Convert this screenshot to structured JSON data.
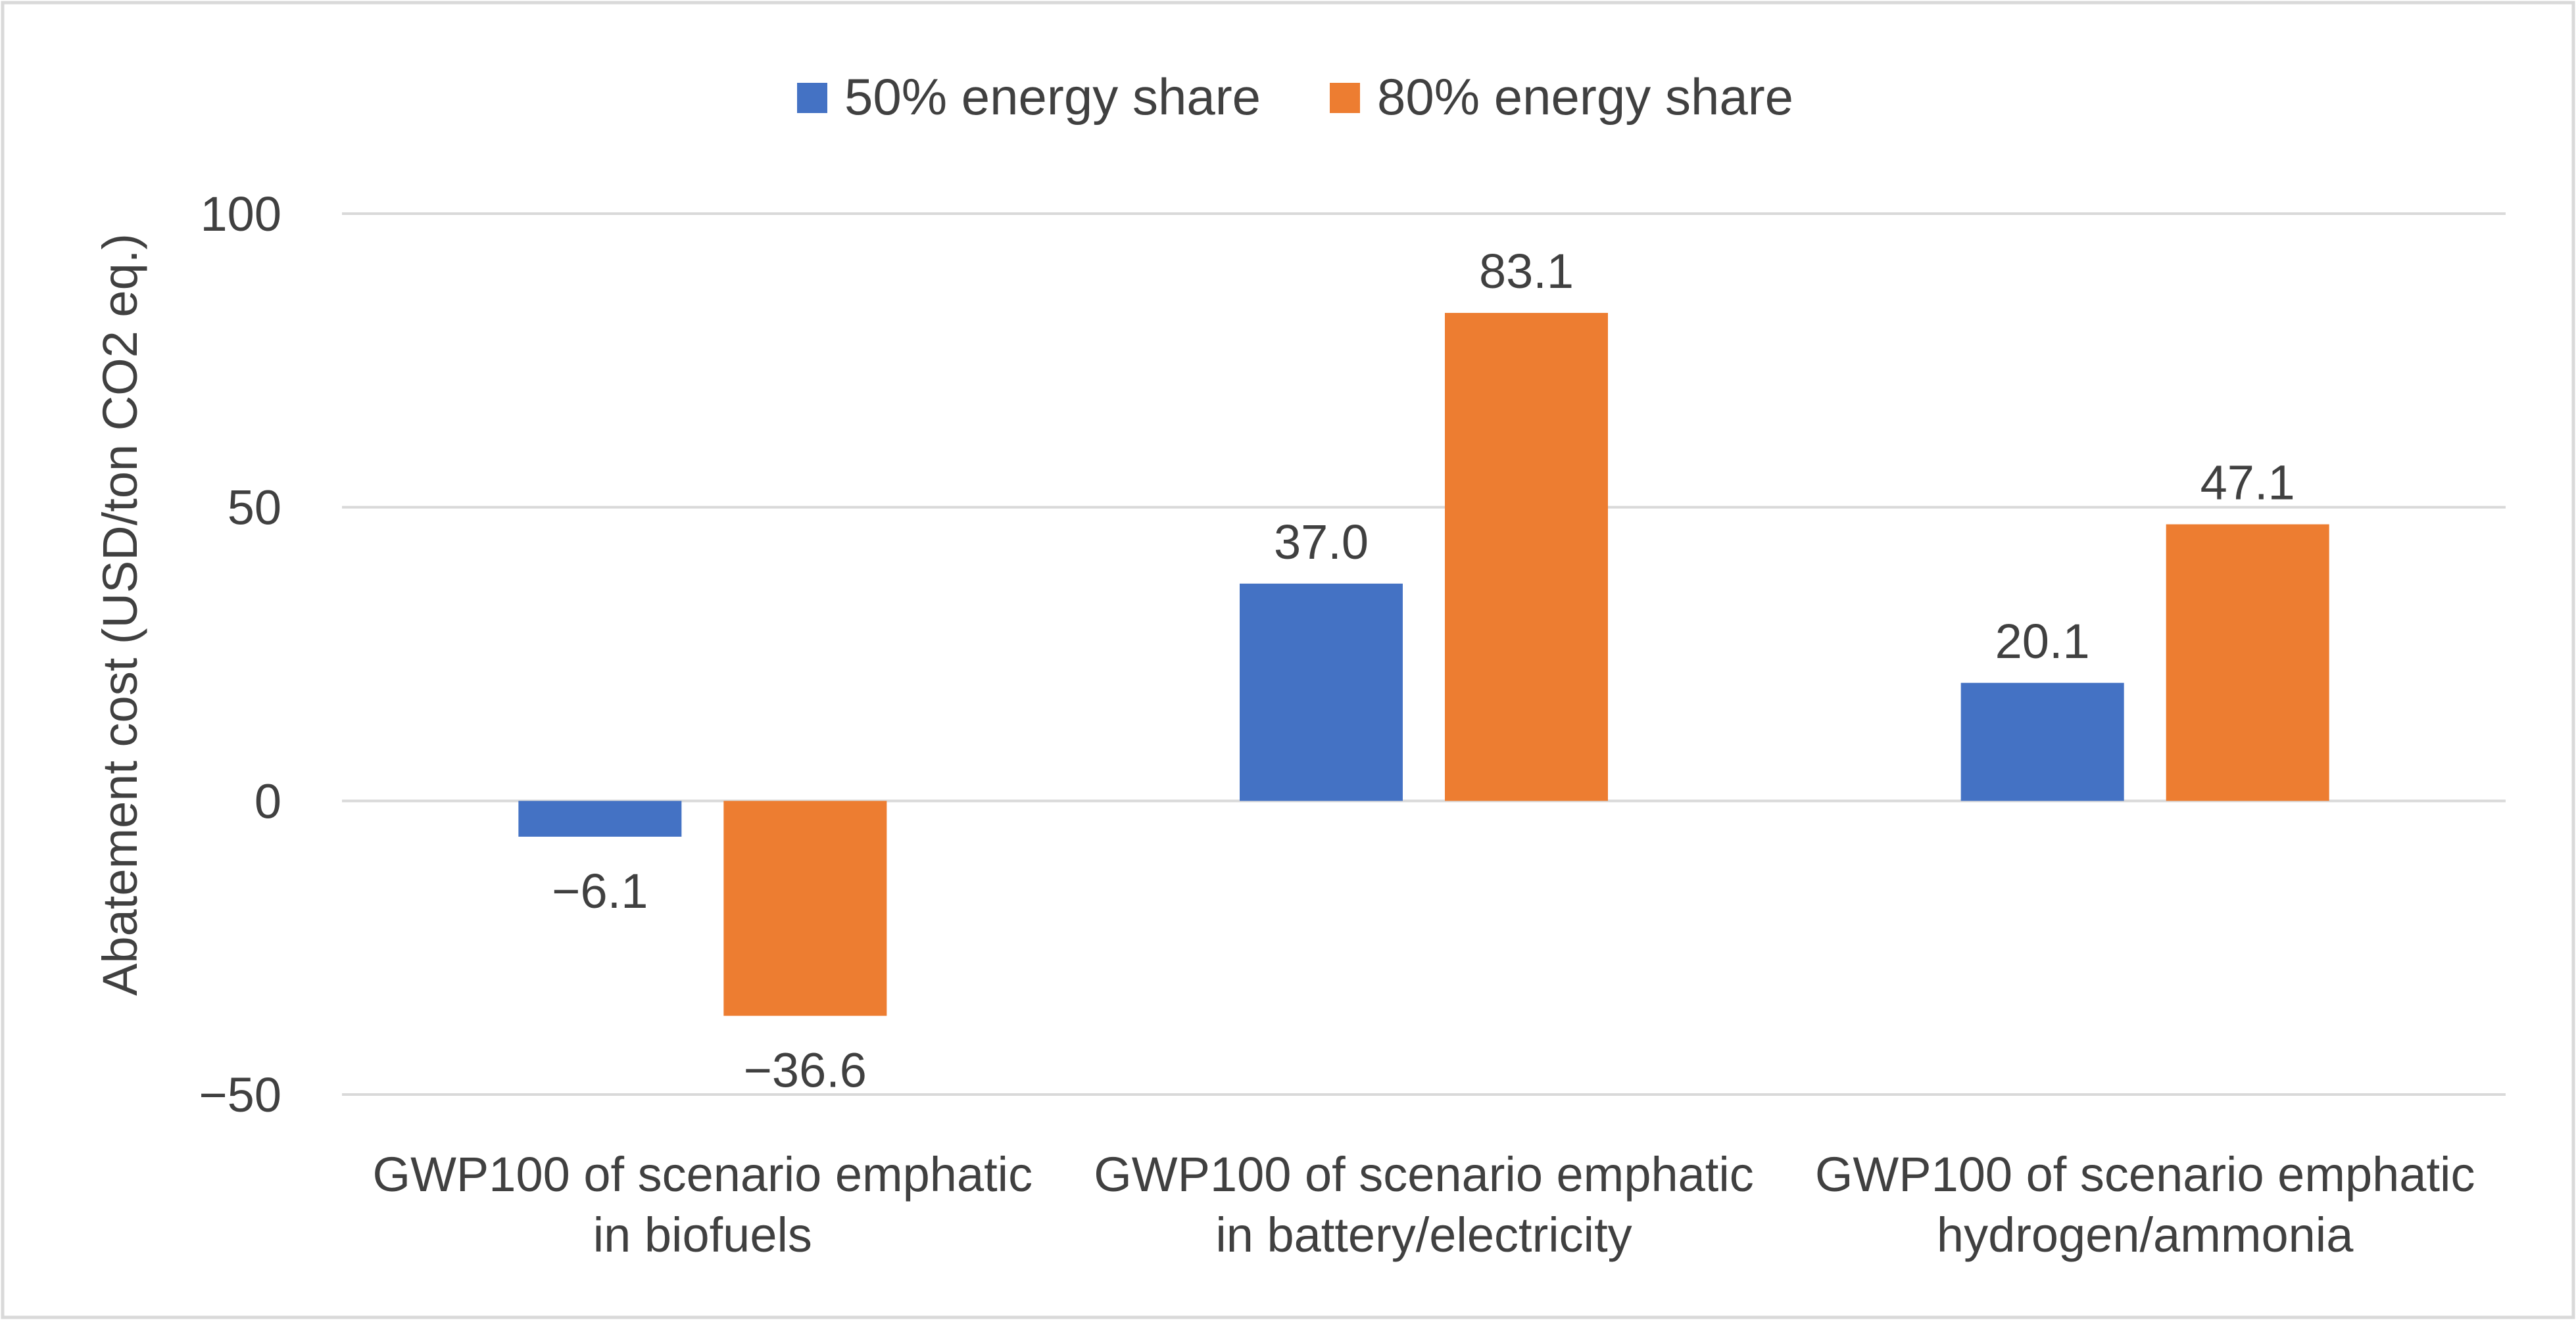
{
  "chart_data": {
    "type": "bar",
    "title": "",
    "xlabel": "",
    "ylabel": "Abatement cost (USD/ton CO2 eq.)",
    "ylim": [
      -50,
      100
    ],
    "yticks": [
      100,
      50,
      0,
      -50
    ],
    "ytick_labels": [
      "100",
      "50",
      "0",
      "−50"
    ],
    "grid": true,
    "legend_position": "top-center",
    "categories": [
      [
        "GWP100 of scenario emphatic",
        "in biofuels"
      ],
      [
        "GWP100 of scenario emphatic",
        "in battery/electricity"
      ],
      [
        "GWP100 of scenario emphatic",
        "hydrogen/ammonia"
      ]
    ],
    "series": [
      {
        "name": "50% energy share",
        "color": "#4472c4",
        "values": [
          -6.1,
          37.0,
          20.1
        ],
        "labels": [
          "−6.1",
          "37.0",
          "20.1"
        ]
      },
      {
        "name": "80% energy share",
        "color": "#ed7d31",
        "values": [
          -36.6,
          83.1,
          47.1
        ],
        "labels": [
          "−36.6",
          "83.1",
          "47.1"
        ]
      }
    ]
  },
  "colors": {
    "gridline": "#d9d9d9",
    "frame": "#d9d9d9",
    "text": "#404040"
  }
}
